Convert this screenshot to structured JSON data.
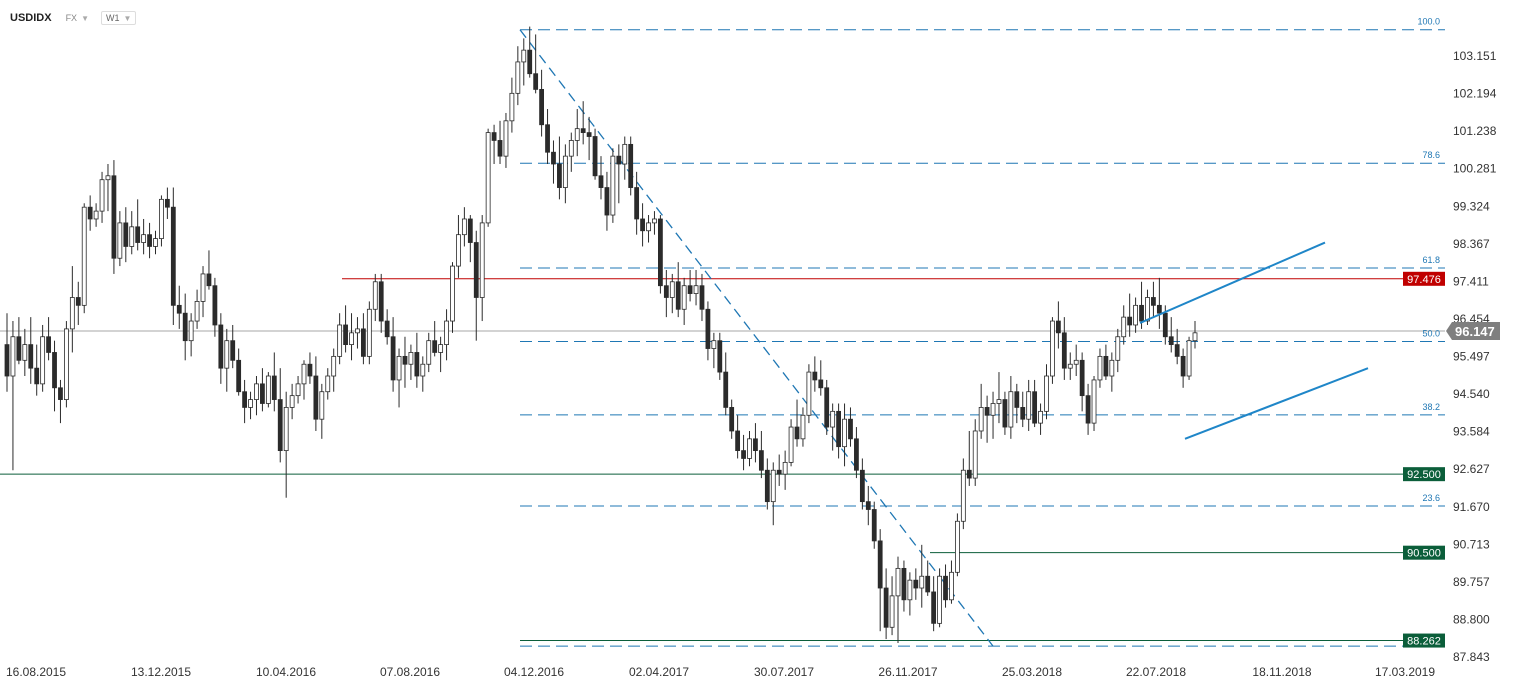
{
  "header": {
    "symbol": "USDIDX",
    "market": "FX",
    "timeframe": "W1"
  },
  "colors": {
    "bull_body": "#ffffff",
    "bear_body": "#2b2b2b",
    "wick": "#2b2b2b",
    "fib": "#1f77b4",
    "fib_label": "#1f77b4",
    "red_level": "#c00000",
    "green_level": "#0b5e3a",
    "price_tag": "#7f7f7f",
    "channel": "#1f86c8"
  },
  "chart_data": {
    "type": "candlestick",
    "ylim": [
      87.843,
      103.151
    ],
    "y_ticks": [
      "103.151",
      "102.194",
      "101.238",
      "100.281",
      "99.324",
      "98.367",
      "97.411",
      "96.454",
      "95.497",
      "94.540",
      "93.584",
      "92.627",
      "91.670",
      "90.713",
      "89.757",
      "88.800",
      "87.843"
    ],
    "x_ticks": [
      "16.08.2015",
      "13.12.2015",
      "10.04.2016",
      "07.08.2016",
      "04.12.2016",
      "02.04.2017",
      "30.07.2017",
      "26.11.2017",
      "25.03.2018",
      "22.07.2018",
      "18.11.2018",
      "17.03.2019"
    ],
    "current_price": "96.147",
    "horizontal_levels": [
      {
        "value": 97.476,
        "label": "97.476",
        "color": "red"
      },
      {
        "value": 92.5,
        "label": "92.500",
        "color": "green"
      },
      {
        "value": 90.5,
        "label": "90.500",
        "color": "green"
      },
      {
        "value": 88.262,
        "label": "88.262",
        "color": "green"
      }
    ],
    "fibonacci": [
      {
        "level": "100.0",
        "price": 103.82
      },
      {
        "level": "78.6",
        "price": 100.42
      },
      {
        "level": "61.8",
        "price": 97.75
      },
      {
        "level": "50.0",
        "price": 95.88
      },
      {
        "level": "38.2",
        "price": 94.01
      },
      {
        "level": "23.6",
        "price": 91.69
      },
      {
        "level": "0.0",
        "price": 88.12
      }
    ],
    "candles": [
      [
        95.8,
        96.6,
        94.6,
        95.0
      ],
      [
        95.0,
        96.4,
        92.6,
        96.0
      ],
      [
        96.0,
        96.5,
        95.3,
        95.4
      ],
      [
        95.4,
        96.2,
        95.0,
        95.8
      ],
      [
        95.8,
        96.5,
        94.8,
        95.2
      ],
      [
        95.2,
        95.8,
        94.5,
        94.8
      ],
      [
        94.8,
        96.3,
        94.6,
        96.0
      ],
      [
        96.0,
        96.5,
        95.4,
        95.6
      ],
      [
        95.6,
        95.9,
        94.1,
        94.7
      ],
      [
        94.7,
        94.9,
        93.8,
        94.4
      ],
      [
        94.4,
        96.4,
        94.2,
        96.2
      ],
      [
        96.2,
        97.8,
        95.6,
        97.0
      ],
      [
        97.0,
        97.4,
        96.3,
        96.8
      ],
      [
        96.8,
        99.4,
        96.6,
        99.3
      ],
      [
        99.3,
        99.6,
        98.7,
        99.0
      ],
      [
        99.0,
        99.4,
        98.8,
        99.2
      ],
      [
        99.2,
        100.2,
        98.9,
        100.0
      ],
      [
        100.0,
        100.4,
        99.2,
        100.1
      ],
      [
        100.1,
        100.5,
        97.6,
        98.0
      ],
      [
        98.0,
        99.2,
        97.8,
        98.9
      ],
      [
        98.9,
        99.3,
        97.9,
        98.3
      ],
      [
        98.3,
        99.2,
        98.1,
        98.8
      ],
      [
        98.8,
        99.5,
        98.2,
        98.4
      ],
      [
        98.4,
        99.0,
        98.1,
        98.6
      ],
      [
        98.6,
        98.9,
        98.0,
        98.3
      ],
      [
        98.3,
        98.7,
        98.1,
        98.5
      ],
      [
        98.5,
        99.6,
        98.3,
        99.5
      ],
      [
        99.5,
        99.8,
        99.0,
        99.3
      ],
      [
        99.3,
        99.8,
        96.3,
        96.8
      ],
      [
        96.8,
        97.3,
        96.2,
        96.6
      ],
      [
        96.6,
        97.1,
        95.4,
        95.9
      ],
      [
        95.9,
        96.6,
        95.5,
        96.4
      ],
      [
        96.4,
        97.2,
        96.2,
        96.9
      ],
      [
        96.9,
        97.8,
        96.5,
        97.6
      ],
      [
        97.6,
        98.2,
        97.2,
        97.3
      ],
      [
        97.3,
        97.5,
        96.0,
        96.3
      ],
      [
        96.3,
        96.6,
        94.8,
        95.2
      ],
      [
        95.2,
        96.2,
        94.6,
        95.9
      ],
      [
        95.9,
        96.3,
        95.2,
        95.4
      ],
      [
        95.4,
        95.7,
        94.5,
        94.6
      ],
      [
        94.6,
        94.9,
        93.8,
        94.2
      ],
      [
        94.2,
        94.6,
        93.9,
        94.4
      ],
      [
        94.4,
        95.0,
        94.0,
        94.8
      ],
      [
        94.8,
        95.2,
        94.1,
        94.3
      ],
      [
        94.3,
        95.1,
        94.2,
        95.0
      ],
      [
        95.0,
        95.6,
        94.1,
        94.4
      ],
      [
        94.4,
        95.2,
        92.8,
        93.1
      ],
      [
        93.1,
        94.6,
        91.9,
        94.2
      ],
      [
        94.2,
        94.8,
        93.9,
        94.5
      ],
      [
        94.5,
        95.0,
        94.3,
        94.8
      ],
      [
        94.8,
        95.4,
        94.4,
        95.3
      ],
      [
        95.3,
        95.6,
        94.8,
        95.0
      ],
      [
        95.0,
        95.5,
        93.6,
        93.9
      ],
      [
        93.9,
        94.8,
        93.4,
        94.6
      ],
      [
        94.6,
        95.2,
        94.4,
        95.0
      ],
      [
        95.0,
        95.7,
        94.6,
        95.5
      ],
      [
        95.5,
        96.6,
        95.3,
        96.3
      ],
      [
        96.3,
        96.8,
        95.6,
        95.8
      ],
      [
        95.8,
        96.6,
        95.4,
        96.1
      ],
      [
        96.1,
        96.5,
        95.7,
        96.2
      ],
      [
        96.2,
        96.6,
        95.3,
        95.5
      ],
      [
        95.5,
        96.9,
        95.3,
        96.7
      ],
      [
        96.7,
        97.6,
        96.4,
        97.4
      ],
      [
        97.4,
        97.6,
        96.1,
        96.4
      ],
      [
        96.4,
        96.7,
        95.8,
        96.0
      ],
      [
        96.0,
        96.5,
        94.6,
        94.9
      ],
      [
        94.9,
        95.7,
        94.2,
        95.5
      ],
      [
        95.5,
        96.0,
        94.7,
        95.3
      ],
      [
        95.3,
        95.8,
        94.9,
        95.6
      ],
      [
        95.6,
        96.1,
        94.7,
        95.0
      ],
      [
        95.0,
        95.5,
        94.6,
        95.3
      ],
      [
        95.3,
        96.1,
        95.1,
        95.9
      ],
      [
        95.9,
        96.4,
        95.5,
        95.6
      ],
      [
        95.6,
        96.0,
        95.1,
        95.8
      ],
      [
        95.8,
        96.7,
        95.4,
        96.4
      ],
      [
        96.4,
        97.9,
        96.1,
        97.8
      ],
      [
        97.8,
        99.1,
        97.5,
        98.6
      ],
      [
        98.6,
        99.3,
        98.3,
        99.0
      ],
      [
        99.0,
        99.1,
        97.9,
        98.4
      ],
      [
        98.4,
        98.7,
        95.9,
        97.0
      ],
      [
        97.0,
        99.1,
        96.4,
        98.9
      ],
      [
        98.9,
        101.3,
        98.8,
        101.2
      ],
      [
        101.2,
        101.4,
        100.4,
        101.0
      ],
      [
        101.0,
        101.5,
        100.4,
        100.6
      ],
      [
        100.6,
        101.7,
        100.3,
        101.5
      ],
      [
        101.5,
        102.6,
        101.2,
        102.2
      ],
      [
        102.2,
        103.4,
        101.9,
        103.0
      ],
      [
        103.0,
        103.6,
        102.4,
        103.3
      ],
      [
        103.3,
        103.9,
        102.6,
        102.7
      ],
      [
        102.7,
        103.7,
        102.2,
        102.3
      ],
      [
        102.3,
        102.8,
        101.1,
        101.4
      ],
      [
        101.4,
        101.8,
        100.4,
        100.7
      ],
      [
        100.7,
        101.0,
        99.9,
        100.4
      ],
      [
        100.4,
        101.1,
        99.5,
        99.8
      ],
      [
        99.8,
        100.9,
        99.4,
        100.6
      ],
      [
        100.6,
        101.2,
        100.2,
        101.0
      ],
      [
        101.0,
        101.8,
        100.6,
        101.3
      ],
      [
        101.3,
        102.0,
        100.9,
        101.2
      ],
      [
        101.2,
        101.6,
        100.5,
        101.1
      ],
      [
        101.1,
        101.3,
        100.0,
        100.1
      ],
      [
        100.1,
        100.6,
        99.5,
        99.8
      ],
      [
        99.8,
        100.2,
        98.7,
        99.1
      ],
      [
        99.1,
        100.8,
        98.9,
        100.6
      ],
      [
        100.6,
        100.9,
        99.4,
        100.4
      ],
      [
        100.4,
        101.1,
        100.0,
        100.9
      ],
      [
        100.9,
        101.1,
        99.6,
        99.8
      ],
      [
        99.8,
        100.2,
        98.6,
        99.0
      ],
      [
        99.0,
        99.4,
        98.3,
        98.7
      ],
      [
        98.7,
        99.1,
        98.4,
        98.9
      ],
      [
        98.9,
        99.2,
        98.6,
        99.0
      ],
      [
        99.0,
        99.1,
        97.1,
        97.3
      ],
      [
        97.3,
        97.7,
        96.5,
        97.0
      ],
      [
        97.0,
        97.6,
        96.6,
        97.4
      ],
      [
        97.4,
        97.9,
        96.5,
        96.7
      ],
      [
        96.7,
        97.5,
        96.3,
        97.3
      ],
      [
        97.3,
        97.7,
        96.9,
        97.1
      ],
      [
        97.1,
        97.7,
        96.8,
        97.3
      ],
      [
        97.3,
        97.6,
        96.4,
        96.7
      ],
      [
        96.7,
        96.9,
        95.4,
        95.7
      ],
      [
        95.7,
        96.1,
        95.2,
        95.9
      ],
      [
        95.9,
        96.1,
        94.9,
        95.1
      ],
      [
        95.1,
        95.6,
        94.0,
        94.2
      ],
      [
        94.2,
        94.4,
        93.4,
        93.6
      ],
      [
        93.6,
        94.0,
        92.9,
        93.1
      ],
      [
        93.1,
        93.5,
        92.6,
        92.9
      ],
      [
        92.9,
        93.6,
        92.7,
        93.4
      ],
      [
        93.4,
        93.8,
        92.8,
        93.1
      ],
      [
        93.1,
        93.6,
        92.4,
        92.6
      ],
      [
        92.6,
        92.9,
        91.6,
        91.8
      ],
      [
        91.8,
        92.8,
        91.2,
        92.6
      ],
      [
        92.6,
        93.0,
        92.2,
        92.5
      ],
      [
        92.5,
        93.1,
        92.1,
        92.8
      ],
      [
        92.8,
        93.9,
        92.7,
        93.7
      ],
      [
        93.7,
        94.4,
        93.2,
        93.4
      ],
      [
        93.4,
        94.2,
        93.2,
        94.0
      ],
      [
        94.0,
        95.3,
        93.8,
        95.1
      ],
      [
        95.1,
        95.5,
        94.6,
        94.9
      ],
      [
        94.9,
        95.4,
        94.5,
        94.7
      ],
      [
        94.7,
        94.9,
        93.5,
        93.7
      ],
      [
        93.7,
        94.3,
        93.1,
        94.1
      ],
      [
        94.1,
        94.3,
        92.9,
        93.2
      ],
      [
        93.2,
        94.3,
        92.7,
        93.9
      ],
      [
        93.9,
        94.2,
        93.2,
        93.4
      ],
      [
        93.4,
        93.7,
        92.4,
        92.6
      ],
      [
        92.6,
        92.9,
        91.6,
        91.8
      ],
      [
        91.8,
        92.2,
        91.2,
        91.6
      ],
      [
        91.6,
        91.8,
        90.6,
        90.8
      ],
      [
        90.8,
        91.1,
        88.5,
        89.6
      ],
      [
        89.6,
        90.1,
        88.3,
        88.6
      ],
      [
        88.6,
        89.9,
        88.4,
        89.4
      ],
      [
        89.4,
        90.4,
        88.2,
        90.1
      ],
      [
        90.1,
        90.3,
        89.0,
        89.3
      ],
      [
        89.3,
        90.0,
        88.9,
        89.8
      ],
      [
        89.8,
        90.1,
        89.3,
        89.6
      ],
      [
        89.6,
        90.7,
        89.1,
        89.9
      ],
      [
        89.9,
        90.3,
        89.4,
        89.5
      ],
      [
        89.5,
        89.9,
        88.5,
        88.7
      ],
      [
        88.7,
        90.1,
        88.6,
        89.9
      ],
      [
        89.9,
        90.2,
        89.1,
        89.3
      ],
      [
        89.3,
        90.3,
        89.2,
        90.0
      ],
      [
        90.0,
        91.5,
        89.9,
        91.3
      ],
      [
        91.3,
        92.9,
        91.1,
        92.6
      ],
      [
        92.6,
        93.6,
        92.2,
        92.4
      ],
      [
        92.4,
        93.9,
        92.2,
        93.6
      ],
      [
        93.6,
        94.8,
        93.4,
        94.2
      ],
      [
        94.2,
        94.5,
        93.3,
        94.0
      ],
      [
        94.0,
        94.6,
        93.4,
        94.3
      ],
      [
        94.3,
        95.1,
        93.8,
        94.4
      ],
      [
        94.4,
        94.6,
        93.5,
        93.7
      ],
      [
        93.7,
        95.0,
        93.4,
        94.6
      ],
      [
        94.6,
        94.8,
        93.8,
        94.2
      ],
      [
        94.2,
        94.6,
        93.7,
        93.9
      ],
      [
        93.9,
        94.9,
        93.6,
        94.6
      ],
      [
        94.6,
        94.9,
        93.7,
        93.8
      ],
      [
        93.8,
        94.3,
        93.5,
        94.1
      ],
      [
        94.1,
        95.3,
        93.9,
        95.0
      ],
      [
        95.0,
        96.5,
        94.8,
        96.4
      ],
      [
        96.4,
        96.9,
        95.7,
        96.1
      ],
      [
        96.1,
        96.5,
        94.9,
        95.2
      ],
      [
        95.2,
        95.6,
        94.9,
        95.3
      ],
      [
        95.3,
        95.8,
        95.0,
        95.4
      ],
      [
        95.4,
        95.6,
        94.1,
        94.5
      ],
      [
        94.5,
        94.8,
        93.5,
        93.8
      ],
      [
        93.8,
        95.0,
        93.6,
        94.9
      ],
      [
        94.9,
        95.7,
        94.7,
        95.5
      ],
      [
        95.5,
        95.8,
        94.9,
        95.0
      ],
      [
        95.0,
        95.6,
        94.6,
        95.4
      ],
      [
        95.4,
        96.2,
        95.1,
        96.0
      ],
      [
        96.0,
        96.8,
        95.8,
        96.5
      ],
      [
        96.5,
        97.1,
        96.0,
        96.3
      ],
      [
        96.3,
        97.0,
        96.1,
        96.8
      ],
      [
        96.8,
        97.4,
        96.2,
        96.4
      ],
      [
        96.4,
        97.2,
        96.3,
        97.0
      ],
      [
        97.0,
        97.4,
        96.5,
        96.8
      ],
      [
        96.8,
        97.5,
        96.2,
        96.6
      ],
      [
        96.6,
        96.8,
        95.8,
        96.0
      ],
      [
        96.0,
        96.5,
        95.6,
        95.8
      ],
      [
        95.8,
        96.2,
        95.3,
        95.5
      ],
      [
        95.5,
        95.7,
        94.7,
        95.0
      ],
      [
        95.0,
        96.0,
        94.9,
        95.9
      ],
      [
        95.9,
        96.4,
        95.7,
        96.1
      ]
    ]
  }
}
